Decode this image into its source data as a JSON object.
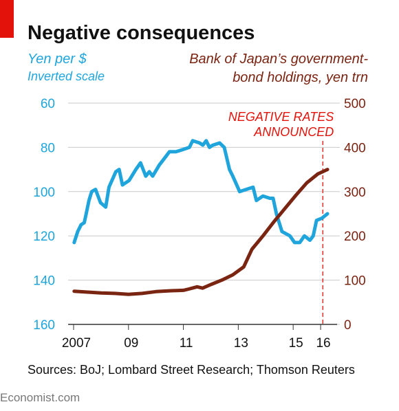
{
  "chart_data": {
    "type": "line",
    "title": "Negative consequences",
    "ylabel": "Yen per $",
    "ylabel_note": "Inverted scale",
    "y2label": [
      "Bank of Japan’s government-",
      "bond holdings, yen trn"
    ],
    "source": "Sources: BoJ; Lombard Street Research; Thomson Reuters",
    "footer": "Economist.com",
    "annotation": {
      "text": [
        "NEGATIVE RATES",
        "ANNOUNCED"
      ],
      "x": 2016.08,
      "color": "#e3120b"
    },
    "xlim": [
      2006.8,
      2016.6
    ],
    "xticks": [
      2007,
      {
        "value": 2009,
        "label": "09"
      },
      {
        "value": 2011,
        "label": "11"
      },
      {
        "value": 2013,
        "label": "13"
      },
      {
        "value": 2015,
        "label": "15"
      },
      {
        "value": 2016,
        "label": "16"
      }
    ],
    "ylim": [
      60,
      160
    ],
    "y_inverted": true,
    "yticks": [
      60,
      80,
      100,
      120,
      140,
      160
    ],
    "y2lim": [
      0,
      500
    ],
    "y2ticks": [
      0,
      100,
      200,
      300,
      400,
      500
    ],
    "grid": true,
    "series": [
      {
        "color": "#1fa5dc",
        "x": [
          2007.02,
          2007.15,
          2007.27,
          2007.39,
          2007.46,
          2007.56,
          2007.66,
          2007.8,
          2007.98,
          2008.17,
          2008.29,
          2008.54,
          2008.66,
          2008.78,
          2009.02,
          2009.27,
          2009.44,
          2009.63,
          2009.76,
          2009.88,
          2010.12,
          2010.37,
          2010.49,
          2010.73,
          2010.98,
          2011.22,
          2011.34,
          2011.59,
          2011.71,
          2011.83,
          2011.95,
          2012.07,
          2012.32,
          2012.49,
          2012.68,
          2012.8,
          2013.05,
          2013.29,
          2013.54,
          2013.66,
          2013.9,
          2014.15,
          2014.27,
          2014.39,
          2014.59,
          2014.88,
          2015.05,
          2015.24,
          2015.41,
          2015.61,
          2015.73,
          2015.85,
          2016.05,
          2016.25
        ],
        "values": [
          123,
          118,
          115,
          114,
          110,
          104,
          100,
          99,
          105,
          107,
          98,
          91,
          90,
          97,
          95,
          90,
          87,
          93,
          91,
          93,
          88,
          84,
          82,
          82,
          81,
          80,
          77,
          78,
          79,
          77,
          80,
          79,
          78,
          80,
          90,
          93,
          100,
          99,
          98,
          104,
          102,
          103,
          103,
          110,
          118,
          120,
          123,
          123,
          120,
          122,
          120,
          113,
          112,
          110
        ]
      },
      {
        "color": "#7a2412",
        "axis": "y2",
        "x": [
          2007.02,
          2007.5,
          2008.0,
          2008.5,
          2009.0,
          2009.5,
          2010.0,
          2010.5,
          2011.0,
          2011.2,
          2011.5,
          2011.7,
          2012.0,
          2012.4,
          2012.8,
          2013.2,
          2013.5,
          2013.9,
          2014.3,
          2014.7,
          2015.1,
          2015.5,
          2015.9,
          2016.25
        ],
        "values": [
          75,
          73,
          71,
          70,
          68,
          70,
          74,
          76,
          77,
          80,
          85,
          82,
          90,
          100,
          112,
          130,
          170,
          200,
          232,
          262,
          292,
          320,
          340,
          350
        ]
      }
    ]
  }
}
